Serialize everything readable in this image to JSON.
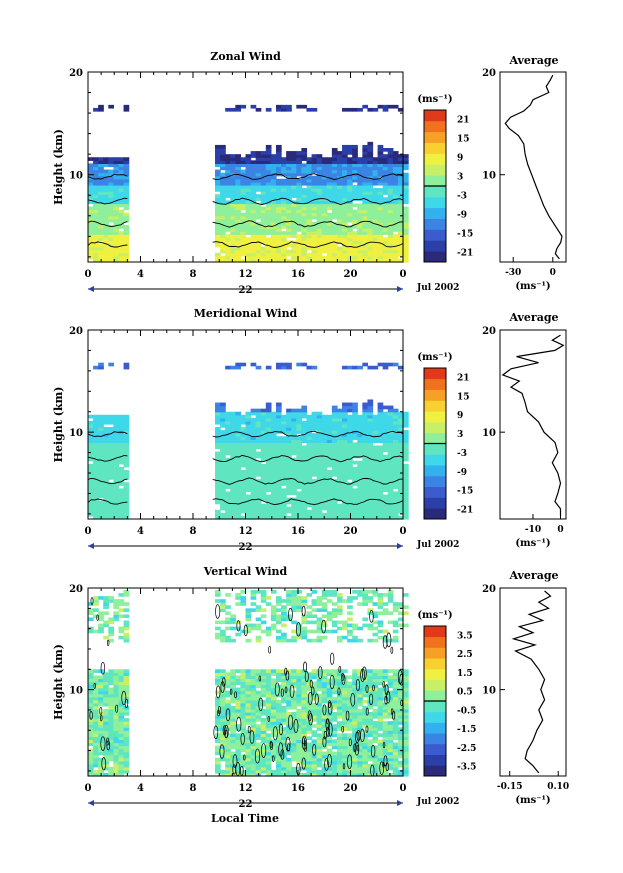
{
  "figure": {
    "xlabel_bottom": "Local Time",
    "date_label": "Jul 2002",
    "unit_label": "(ms⁻¹)"
  },
  "chart_data": [
    {
      "type": "heatmap",
      "title": "Zonal Wind",
      "ylabel": "Height (km)",
      "xlabel": "",
      "x_ticks": [
        "0",
        "4",
        "8",
        "12",
        "16",
        "20",
        "0"
      ],
      "y_ticks": [
        "20",
        "10"
      ],
      "day_label": "22",
      "xlim": [
        0,
        24
      ],
      "ylim": [
        1.5,
        20
      ],
      "data_gap_hours": [
        3,
        9.5
      ],
      "colorbar": {
        "unit": "(ms⁻¹)",
        "ticks": [
          "21",
          "15",
          "9",
          "3",
          "-3",
          "-9",
          "-15",
          "-21"
        ],
        "range": [
          -24,
          24
        ]
      },
      "profile": {
        "title": "Average",
        "x_ticks": [
          "-30",
          "0"
        ],
        "y_ticks": [
          "20",
          "10"
        ],
        "xlabel": "(ms⁻¹)",
        "xlim": [
          -40,
          10
        ],
        "height": [
          1.8,
          2.3,
          2.8,
          3.4,
          4,
          5,
          6,
          7,
          8,
          9,
          10,
          11,
          12,
          13,
          13.8,
          14.5,
          15,
          15.6,
          16.2,
          16.8,
          17.3,
          18,
          18.6,
          19.2,
          19.7
        ],
        "values": [
          5,
          2,
          3,
          6,
          7,
          2,
          -3,
          -7,
          -10,
          -13,
          -16,
          -19,
          -21,
          -22,
          -26,
          -33,
          -36,
          -32,
          -22,
          -17,
          -15,
          -3,
          -5,
          -2,
          0
        ]
      }
    },
    {
      "type": "heatmap",
      "title": "Meridional Wind",
      "ylabel": "Height (km)",
      "xlabel": "",
      "x_ticks": [
        "0",
        "4",
        "8",
        "12",
        "16",
        "20",
        "0"
      ],
      "y_ticks": [
        "20",
        "10"
      ],
      "day_label": "22",
      "xlim": [
        0,
        24
      ],
      "ylim": [
        1.5,
        20
      ],
      "data_gap_hours": [
        3,
        9.5
      ],
      "colorbar": {
        "unit": "(ms⁻¹)",
        "ticks": [
          "21",
          "15",
          "9",
          "3",
          "-3",
          "-9",
          "-15",
          "-21"
        ],
        "range": [
          -24,
          24
        ]
      },
      "profile": {
        "title": "Average",
        "x_ticks": [
          "-10",
          "0"
        ],
        "y_ticks": [
          "20",
          "10"
        ],
        "xlabel": "(ms⁻¹)",
        "xlim": [
          -22,
          2
        ],
        "height": [
          1.8,
          2.5,
          3.2,
          4,
          5,
          6,
          7,
          8,
          9,
          10,
          11,
          12,
          13,
          13.8,
          14.4,
          15,
          15.6,
          16.2,
          16.8,
          17.4,
          18,
          18.5,
          19,
          19.5
        ],
        "values": [
          0,
          0,
          -2,
          -1,
          0,
          -1,
          -3,
          -1,
          -2,
          -6,
          -8,
          -12,
          -13,
          -14,
          -18,
          -15,
          -21,
          -18,
          -8,
          -16,
          -2,
          1,
          -3,
          0
        ]
      }
    },
    {
      "type": "heatmap",
      "title": "Vertical Wind",
      "ylabel": "Height (km)",
      "xlabel": "Local Time",
      "x_ticks": [
        "0",
        "4",
        "8",
        "12",
        "16",
        "20",
        "0"
      ],
      "y_ticks": [
        "20",
        "10"
      ],
      "day_label": "22",
      "xlim": [
        0,
        24
      ],
      "ylim": [
        1.5,
        20
      ],
      "data_gap_hours": [
        3,
        9.5
      ],
      "colorbar": {
        "unit": "(ms⁻¹)",
        "ticks": [
          "3.5",
          "2.5",
          "1.5",
          "0.5",
          "-0.5",
          "-1.5",
          "-2.5",
          "-3.5"
        ],
        "range": [
          -4,
          4
        ]
      },
      "profile": {
        "title": "Average",
        "x_ticks": [
          "-0.15",
          "0.10"
        ],
        "y_ticks": [
          "20",
          "10"
        ],
        "xlabel": "(ms⁻¹)",
        "xlim": [
          -0.2,
          0.14
        ],
        "height": [
          1.8,
          2.5,
          3.2,
          4,
          5,
          6,
          7,
          8,
          9,
          10,
          11,
          12,
          13,
          13.8,
          14.4,
          15,
          15.6,
          16.2,
          16.8,
          17.4,
          18,
          18.6,
          19.2,
          19.7
        ],
        "values": [
          0.0,
          -0.03,
          -0.07,
          -0.06,
          -0.03,
          -0.01,
          0.02,
          0.0,
          0.03,
          0.01,
          0.03,
          0.0,
          -0.04,
          -0.12,
          -0.02,
          -0.13,
          -0.03,
          -0.1,
          0.02,
          -0.05,
          0.05,
          0.0,
          0.06,
          0.03
        ]
      }
    }
  ]
}
